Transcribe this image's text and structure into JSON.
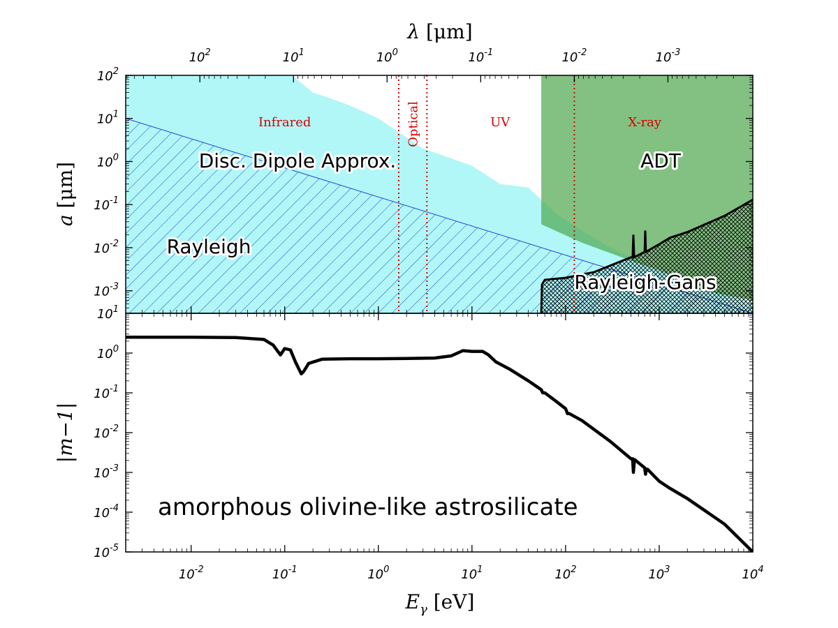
{
  "chart_data": [
    {
      "type": "area",
      "panel": "top",
      "x_label": "E_γ [eV]",
      "y_label": "a [μm]",
      "top_axis_label": "λ [μm]",
      "xscale": "log",
      "yscale": "log",
      "xlim": [
        0.002,
        10000
      ],
      "ylim": [
        0.0003,
        100
      ],
      "y_ticks": [
        "10^-3",
        "10^-2",
        "10^-1",
        "10^0",
        "10^1",
        "10^2"
      ],
      "top_ticks": [
        {
          "lambda_um": 100,
          "label": "10^2"
        },
        {
          "lambda_um": 10,
          "label": "10^1"
        },
        {
          "lambda_um": 1,
          "label": "10^0"
        },
        {
          "lambda_um": 0.1,
          "label": "10^-1"
        },
        {
          "lambda_um": 0.01,
          "label": "10^-2"
        },
        {
          "lambda_um": 0.001,
          "label": "10^-3"
        }
      ],
      "band_boundaries_eV": [
        1.65,
        3.3,
        124
      ],
      "bands": [
        {
          "name": "Infrared",
          "x_eV": 0.1
        },
        {
          "name": "Optical",
          "x_eV": 2.3
        },
        {
          "name": "UV",
          "x_eV": 20
        },
        {
          "name": "X-ray",
          "x_eV": 700
        }
      ],
      "regimes": [
        {
          "name": "Disc. Dipole Approx.",
          "color": "#7ff2f2",
          "upper_boundary": [
            [
              0.002,
              100
            ],
            [
              0.12,
              100
            ],
            [
              0.2,
              40
            ],
            [
              0.3,
              30
            ],
            [
              0.5,
              20
            ],
            [
              1,
              10
            ],
            [
              3,
              2
            ],
            [
              10,
              0.8
            ],
            [
              20,
              0.3
            ],
            [
              40,
              0.25
            ],
            [
              80,
              0.06
            ],
            [
              150,
              0.025
            ],
            [
              300,
              0.01
            ],
            [
              1000,
              0.003
            ],
            [
              3000,
              0.0015
            ],
            [
              10000,
              0.0005
            ]
          ]
        },
        {
          "name": "Rayleigh",
          "color": "#1f3fd6",
          "upper_boundary": [
            [
              0.002,
              10
            ],
            [
              10000,
              0.0003
            ]
          ]
        },
        {
          "name": "ADT",
          "color": "#4da64d",
          "x_start_eV": 55,
          "lower_boundary": [
            [
              55,
              0.035
            ],
            [
              150,
              0.013
            ],
            [
              500,
              0.005
            ],
            [
              1000,
              0.003
            ],
            [
              3000,
              0.001
            ],
            [
              10000,
              0.0006
            ]
          ],
          "upper_y": 100
        },
        {
          "name": "Rayleigh-Gans",
          "color": "#000000",
          "upper_boundary": [
            [
              55,
              0.0003
            ],
            [
              56,
              0.0014
            ],
            [
              60,
              0.0018
            ],
            [
              100,
              0.002
            ],
            [
              200,
              0.0027
            ],
            [
              500,
              0.006
            ],
            [
              520,
              0.006
            ],
            [
              530,
              0.02
            ],
            [
              540,
              0.006
            ],
            [
              700,
              0.008
            ],
            [
              710,
              0.025
            ],
            [
              720,
              0.008
            ],
            [
              1000,
              0.012
            ],
            [
              1300,
              0.017
            ],
            [
              2000,
              0.023
            ],
            [
              5000,
              0.055
            ],
            [
              10000,
              0.13
            ]
          ]
        }
      ]
    },
    {
      "type": "line",
      "panel": "bottom",
      "x_label": "E_γ [eV]",
      "y_label": "|m−1|",
      "annotation": "amorphous olivine-like astrosilicate",
      "xscale": "log",
      "yscale": "log",
      "xlim": [
        0.002,
        10000
      ],
      "ylim": [
        1e-05,
        10
      ],
      "x_ticks": [
        "10^-2",
        "10^-1",
        "10^0",
        "10^1",
        "10^2",
        "10^3",
        "10^4"
      ],
      "y_ticks": [
        "10^-5",
        "10^-4",
        "10^-3",
        "10^-2",
        "10^-1",
        "10^0",
        "10^1"
      ],
      "series": [
        {
          "x": [
            0.002,
            0.01,
            0.03,
            0.06,
            0.075,
            0.09,
            0.1,
            0.115,
            0.13,
            0.15,
            0.16,
            0.18,
            0.25,
            0.5,
            1,
            2,
            4,
            6,
            8,
            10,
            13,
            15,
            18,
            25,
            40,
            55,
            57,
            60,
            80,
            100,
            105,
            110,
            150,
            300,
            500,
            520,
            530,
            545,
            560,
            700,
            715,
            730,
            750,
            1000,
            1300,
            2000,
            5000,
            10000
          ],
          "y": [
            2.5,
            2.5,
            2.45,
            2.2,
            1.6,
            0.9,
            1.3,
            1.2,
            0.6,
            0.3,
            0.35,
            0.55,
            0.7,
            0.72,
            0.72,
            0.73,
            0.75,
            0.85,
            1.15,
            1.1,
            1.1,
            0.9,
            0.6,
            0.4,
            0.2,
            0.12,
            0.1,
            0.1,
            0.06,
            0.04,
            0.03,
            0.03,
            0.02,
            0.006,
            0.0022,
            0.0022,
            0.001,
            0.0021,
            0.002,
            0.0013,
            0.0009,
            0.0012,
            0.0012,
            0.0006,
            0.0004,
            0.00022,
            5e-05,
            1e-05
          ]
        }
      ]
    }
  ]
}
